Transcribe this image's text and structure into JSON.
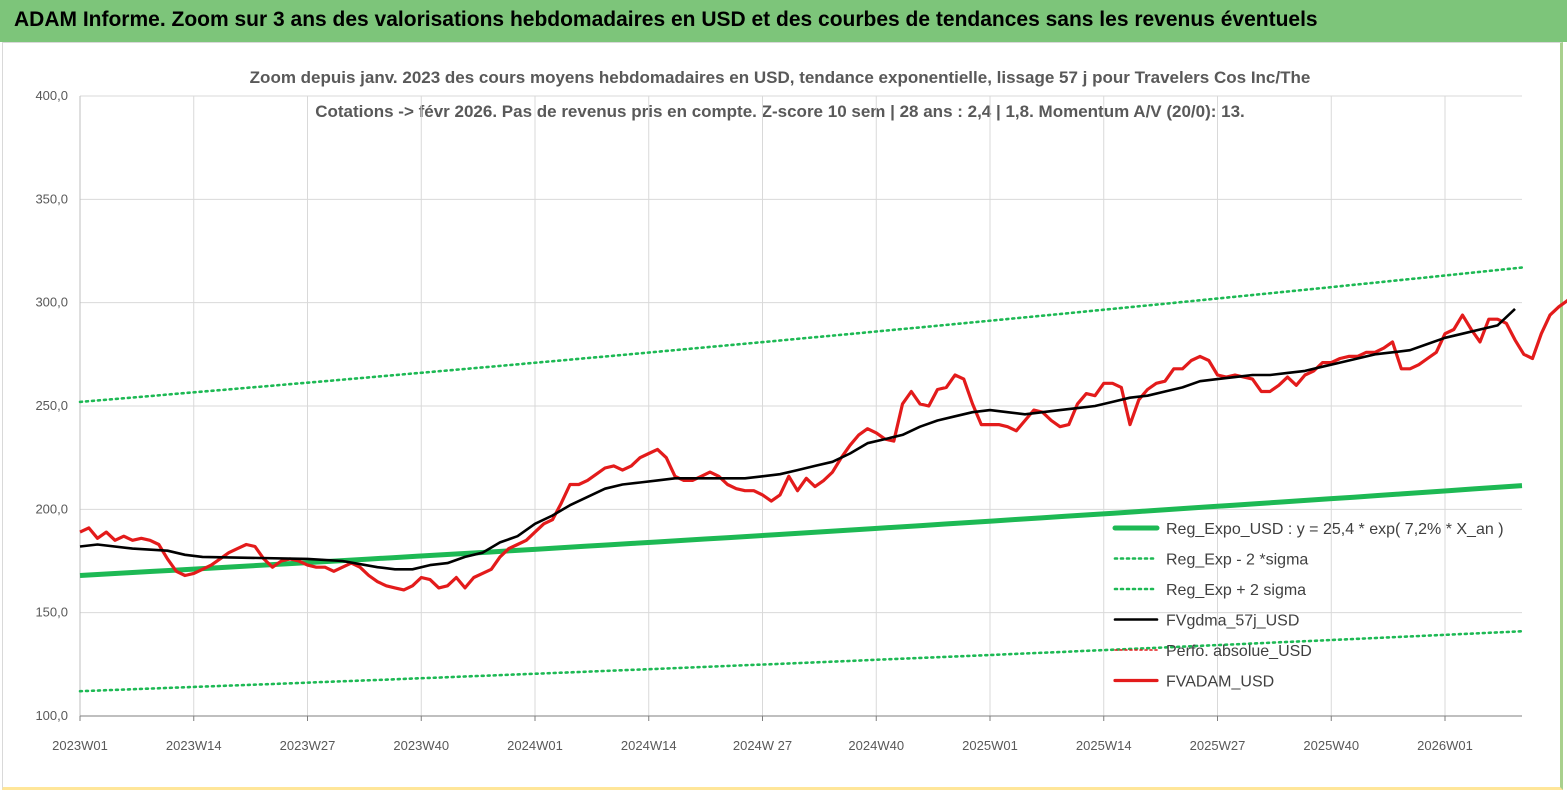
{
  "header": {
    "title": "ADAM Informe. Zoom sur 3 ans des valorisations hebdomadaires en USD et des courbes de tendances sans les revenus éventuels"
  },
  "colors": {
    "green": "#1db954",
    "black": "#000000",
    "red": "#e31b1b",
    "banner": "#7dc57a"
  },
  "chart_data": {
    "type": "line",
    "title_lines": [
      "Zoom depuis janv. 2023 des cours moyens hebdomadaires en USD, tendance exponentielle, lissage 57 j pour Travelers Cos Inc/The",
      "Cotations -> févr 2026.  Pas de revenus pris en compte. Z-score 10 sem  | 28 ans : 2,4  | 1,8. Momentum A/V (20/0): 13."
    ],
    "x_categories": [
      "2023W01",
      "2023W14",
      "2023W27",
      "2023W40",
      "2024W01",
      "2024W14",
      "2024W 27",
      "2024W40",
      "2025W01",
      "2025W14",
      "2025W27",
      "2025W40",
      "2026W01"
    ],
    "x_range_weeks": [
      0,
      164
    ],
    "ylim": [
      100,
      400
    ],
    "y_ticks": [
      "100,0",
      "150,0",
      "200,0",
      "250,0",
      "300,0",
      "350,0",
      "400,0"
    ],
    "legend_position": "bottom-right",
    "series": [
      {
        "name": "Reg_Expo_USD : y = 25,4 * exp( 7,2% *  X_an )",
        "style": "solid-thick",
        "color": "#1db954",
        "start": 168,
        "end": 211.5
      },
      {
        "name": "Reg_Exp - 2 *sigma",
        "style": "dotted",
        "color": "#1db954",
        "start": 112,
        "end": 141
      },
      {
        "name": "Reg_Exp + 2 sigma",
        "style": "dotted",
        "color": "#1db954",
        "start": 252,
        "end": 317
      },
      {
        "name": "FVgdma_57j_USD",
        "style": "solid",
        "color": "#000000",
        "points": [
          [
            0,
            182
          ],
          [
            2,
            183
          ],
          [
            6,
            181
          ],
          [
            10,
            180
          ],
          [
            12,
            178
          ],
          [
            14,
            177
          ],
          [
            26,
            176
          ],
          [
            30,
            175
          ],
          [
            34,
            172
          ],
          [
            36,
            171
          ],
          [
            38,
            171
          ],
          [
            40,
            173
          ],
          [
            42,
            174
          ],
          [
            44,
            177
          ],
          [
            46,
            179
          ],
          [
            48,
            184
          ],
          [
            50,
            187
          ],
          [
            52,
            193
          ],
          [
            54,
            197
          ],
          [
            56,
            202
          ],
          [
            58,
            206
          ],
          [
            60,
            210
          ],
          [
            62,
            212
          ],
          [
            64,
            213
          ],
          [
            66,
            214
          ],
          [
            68,
            215
          ],
          [
            72,
            215
          ],
          [
            76,
            215
          ],
          [
            78,
            216
          ],
          [
            80,
            217
          ],
          [
            82,
            219
          ],
          [
            84,
            221
          ],
          [
            86,
            223
          ],
          [
            88,
            227
          ],
          [
            90,
            232
          ],
          [
            92,
            234
          ],
          [
            94,
            236
          ],
          [
            96,
            240
          ],
          [
            98,
            243
          ],
          [
            100,
            245
          ],
          [
            102,
            247
          ],
          [
            104,
            248
          ],
          [
            106,
            247
          ],
          [
            108,
            246
          ],
          [
            110,
            247
          ],
          [
            112,
            248
          ],
          [
            114,
            249
          ],
          [
            116,
            250
          ],
          [
            118,
            252
          ],
          [
            120,
            254
          ],
          [
            122,
            255
          ],
          [
            124,
            257
          ],
          [
            126,
            259
          ],
          [
            128,
            262
          ],
          [
            130,
            263
          ],
          [
            132,
            264
          ],
          [
            134,
            265
          ],
          [
            136,
            265
          ],
          [
            138,
            266
          ],
          [
            140,
            267
          ],
          [
            142,
            269
          ],
          [
            144,
            271
          ],
          [
            146,
            273
          ],
          [
            148,
            275
          ],
          [
            150,
            276
          ],
          [
            152,
            277
          ],
          [
            154,
            280
          ],
          [
            156,
            283
          ],
          [
            158,
            285
          ],
          [
            160,
            287
          ],
          [
            162,
            289
          ],
          [
            164,
            297
          ]
        ]
      },
      {
        "name": "Perfo. absolue_USD",
        "style": "dotted-thin",
        "color": "#e31b1b"
      },
      {
        "name": "FVADAM_USD",
        "style": "solid-thick",
        "color": "#e31b1b",
        "points": [
          [
            0,
            189
          ],
          [
            1,
            191
          ],
          [
            2,
            186
          ],
          [
            3,
            189
          ],
          [
            4,
            185
          ],
          [
            5,
            187
          ],
          [
            6,
            185
          ],
          [
            7,
            186
          ],
          [
            8,
            185
          ],
          [
            9,
            183
          ],
          [
            10,
            176
          ],
          [
            11,
            170
          ],
          [
            12,
            168
          ],
          [
            13,
            169
          ],
          [
            14,
            171
          ],
          [
            15,
            173
          ],
          [
            16,
            176
          ],
          [
            17,
            179
          ],
          [
            18,
            181
          ],
          [
            19,
            183
          ],
          [
            20,
            182
          ],
          [
            21,
            176
          ],
          [
            22,
            172
          ],
          [
            23,
            175
          ],
          [
            24,
            176
          ],
          [
            25,
            175
          ],
          [
            26,
            173
          ],
          [
            27,
            172
          ],
          [
            28,
            172
          ],
          [
            29,
            170
          ],
          [
            30,
            172
          ],
          [
            31,
            174
          ],
          [
            32,
            172
          ],
          [
            33,
            168
          ],
          [
            34,
            165
          ],
          [
            35,
            163
          ],
          [
            36,
            162
          ],
          [
            37,
            161
          ],
          [
            38,
            163
          ],
          [
            39,
            167
          ],
          [
            40,
            166
          ],
          [
            41,
            162
          ],
          [
            42,
            163
          ],
          [
            43,
            167
          ],
          [
            44,
            162
          ],
          [
            45,
            167
          ],
          [
            46,
            169
          ],
          [
            47,
            171
          ],
          [
            48,
            177
          ],
          [
            49,
            181
          ],
          [
            50,
            183
          ],
          [
            51,
            185
          ],
          [
            52,
            189
          ],
          [
            53,
            193
          ],
          [
            54,
            195
          ],
          [
            55,
            203
          ],
          [
            56,
            212
          ],
          [
            57,
            212
          ],
          [
            58,
            214
          ],
          [
            59,
            217
          ],
          [
            60,
            220
          ],
          [
            61,
            221
          ],
          [
            62,
            219
          ],
          [
            63,
            221
          ],
          [
            64,
            225
          ],
          [
            65,
            227
          ],
          [
            66,
            229
          ],
          [
            67,
            225
          ],
          [
            68,
            216
          ],
          [
            69,
            214
          ],
          [
            70,
            214
          ],
          [
            71,
            216
          ],
          [
            72,
            218
          ],
          [
            73,
            216
          ],
          [
            74,
            212
          ],
          [
            75,
            210
          ],
          [
            76,
            209
          ],
          [
            77,
            209
          ],
          [
            78,
            207
          ],
          [
            79,
            204
          ],
          [
            80,
            207
          ],
          [
            81,
            216
          ],
          [
            82,
            209
          ],
          [
            83,
            215
          ],
          [
            84,
            211
          ],
          [
            85,
            214
          ],
          [
            86,
            218
          ],
          [
            87,
            225
          ],
          [
            88,
            231
          ],
          [
            89,
            236
          ],
          [
            90,
            239
          ],
          [
            91,
            237
          ],
          [
            92,
            234
          ],
          [
            93,
            233
          ],
          [
            94,
            251
          ],
          [
            95,
            257
          ],
          [
            96,
            251
          ],
          [
            97,
            250
          ],
          [
            98,
            258
          ],
          [
            99,
            259
          ],
          [
            100,
            265
          ],
          [
            101,
            263
          ],
          [
            102,
            251
          ],
          [
            103,
            241
          ],
          [
            104,
            241
          ],
          [
            105,
            241
          ],
          [
            106,
            240
          ],
          [
            107,
            238
          ],
          [
            108,
            243
          ],
          [
            109,
            248
          ],
          [
            110,
            247
          ],
          [
            111,
            243
          ],
          [
            112,
            240
          ],
          [
            113,
            241
          ],
          [
            114,
            251
          ],
          [
            115,
            256
          ],
          [
            116,
            255
          ],
          [
            117,
            261
          ],
          [
            118,
            261
          ],
          [
            119,
            259
          ],
          [
            120,
            241
          ],
          [
            121,
            253
          ],
          [
            122,
            258
          ],
          [
            123,
            261
          ],
          [
            124,
            262
          ],
          [
            125,
            268
          ],
          [
            126,
            268
          ],
          [
            127,
            272
          ],
          [
            128,
            274
          ],
          [
            129,
            272
          ],
          [
            130,
            265
          ],
          [
            131,
            264
          ],
          [
            132,
            265
          ],
          [
            133,
            264
          ],
          [
            134,
            263
          ],
          [
            135,
            257
          ],
          [
            136,
            257
          ],
          [
            137,
            260
          ],
          [
            138,
            264
          ],
          [
            139,
            260
          ],
          [
            140,
            265
          ],
          [
            141,
            267
          ],
          [
            142,
            271
          ],
          [
            143,
            271
          ],
          [
            144,
            273
          ],
          [
            145,
            274
          ],
          [
            146,
            274
          ],
          [
            147,
            276
          ],
          [
            148,
            276
          ],
          [
            149,
            278
          ],
          [
            150,
            281
          ],
          [
            151,
            268
          ],
          [
            152,
            268
          ],
          [
            153,
            270
          ],
          [
            154,
            273
          ],
          [
            155,
            276
          ],
          [
            156,
            285
          ],
          [
            157,
            287
          ],
          [
            158,
            294
          ],
          [
            159,
            287
          ],
          [
            160,
            281
          ],
          [
            161,
            292
          ],
          [
            162,
            292
          ],
          [
            163,
            290
          ],
          [
            164,
            282
          ],
          [
            165,
            275
          ],
          [
            166,
            273
          ],
          [
            167,
            285
          ],
          [
            168,
            294
          ],
          [
            169,
            298
          ],
          [
            170,
            301
          ],
          [
            171,
            306
          ]
        ]
      }
    ]
  }
}
